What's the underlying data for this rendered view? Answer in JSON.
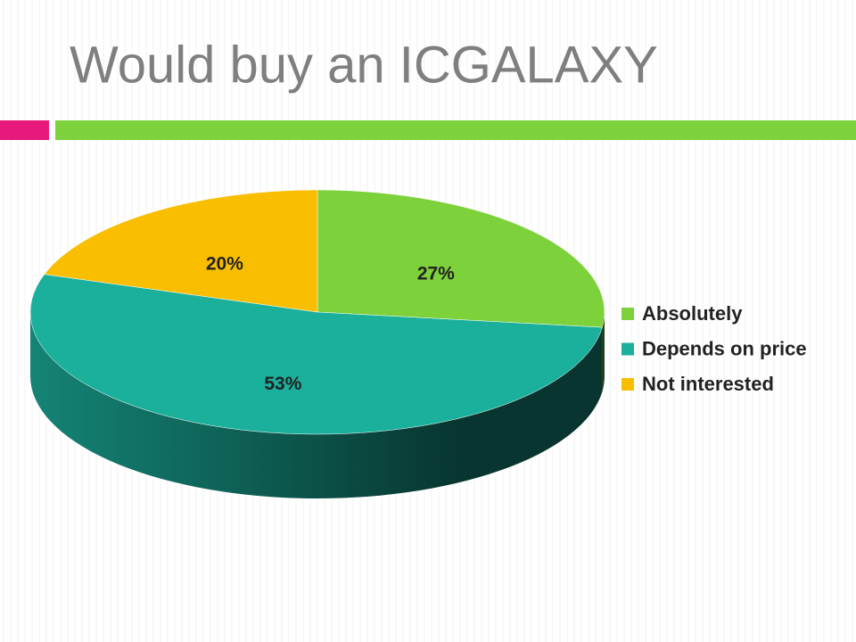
{
  "chart_data": {
    "type": "pie",
    "title": "Would buy an ICGALAXY",
    "categories": [
      "Absolutely",
      "Depends on price",
      "Not interested"
    ],
    "values": [
      27,
      53,
      20
    ],
    "value_labels": [
      "27%",
      "53%",
      "20%"
    ],
    "colors": [
      "#7dd13b",
      "#1ab09c",
      "#f9be00"
    ],
    "legend": "right"
  }
}
